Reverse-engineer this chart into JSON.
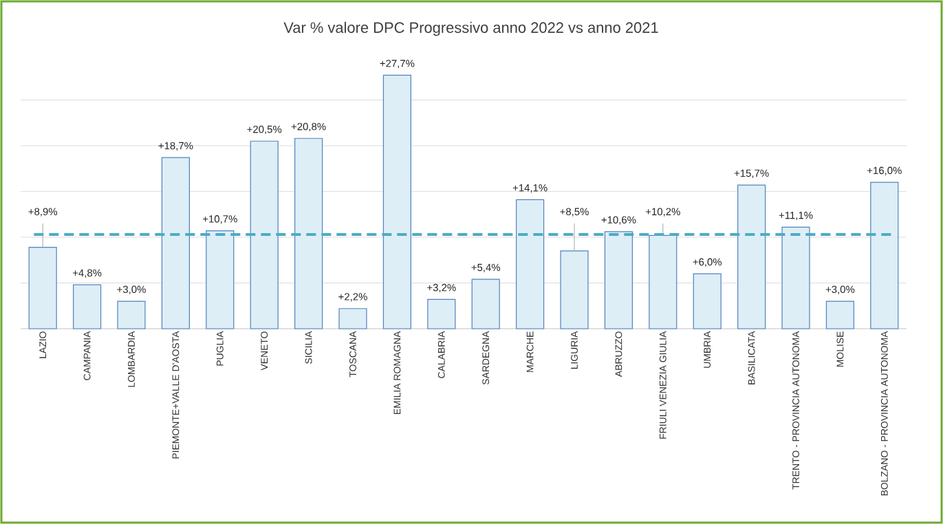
{
  "chart_data": {
    "type": "bar",
    "title": "Var % valore DPC Progressivo anno 2022 vs anno 2021",
    "categories": [
      "LAZIO",
      "CAMPANIA",
      "LOMBARDIA",
      "PIEMONTE+VALLE D'AOSTA",
      "PUGLIA",
      "VENETO",
      "SICILIA",
      "TOSCANA",
      "EMILIA ROMAGNA",
      "CALABRIA",
      "SARDEGNA",
      "MARCHE",
      "LIGURIA",
      "ABRUZZO",
      "FRIULI VENEZIA GIULIA",
      "UMBRIA",
      "BASILICATA",
      "TRENTO - PROVINCIA AUTONOMA",
      "MOLISE",
      "BOLZANO - PROVINCIA AUTONOMA"
    ],
    "values": [
      8.9,
      4.8,
      3.0,
      18.7,
      10.7,
      20.5,
      20.8,
      2.2,
      27.7,
      3.2,
      5.4,
      14.1,
      8.5,
      10.6,
      10.2,
      6.0,
      15.7,
      11.1,
      3.0,
      16.0
    ],
    "value_labels": [
      "+8,9%",
      "+4,8%",
      "+3,0%",
      "+18,7%",
      "+10,7%",
      "+20,5%",
      "+20,8%",
      "+2,2%",
      "+27,7%",
      "+3,2%",
      "+5,4%",
      "+14,1%",
      "+8,5%",
      "+10,6%",
      "+10,2%",
      "+6,0%",
      "+15,7%",
      "+11,1%",
      "+3,0%",
      "+16,0%"
    ],
    "color": "#deeef6",
    "tick_labels": "x",
    "grid": "y",
    "ref_lines": [
      {
        "axis": "y",
        "value": 10.3,
        "color": "#4bacc6",
        "line_style": "dashed"
      }
    ]
  }
}
